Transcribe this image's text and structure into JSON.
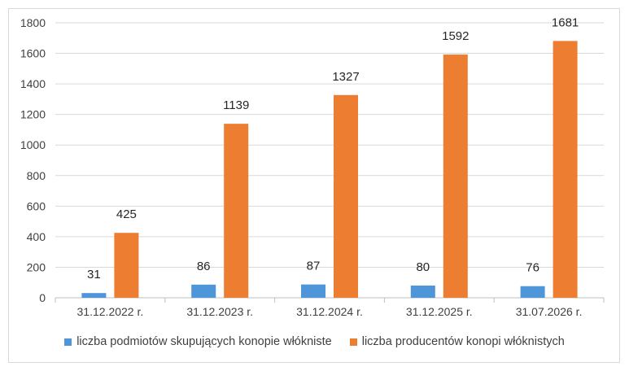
{
  "chart_data": {
    "type": "bar",
    "categories": [
      "31.12.2022 r.",
      "31.12.2023 r.",
      "31.12.2024 r.",
      "31.12.2025 r.",
      "31.07.2026 r."
    ],
    "series": [
      {
        "name": "liczba podmiotów skupujących konopie włókniste",
        "values": [
          31,
          86,
          87,
          80,
          76
        ],
        "color": "#4e95d9"
      },
      {
        "name": "liczba producentów konopi włóknistych",
        "values": [
          425,
          1139,
          1327,
          1592,
          1681
        ],
        "color": "#ed7d31"
      }
    ],
    "ylim": [
      0,
      1800
    ],
    "yticks": [
      0,
      200,
      400,
      600,
      800,
      1000,
      1200,
      1400,
      1600,
      1800
    ],
    "grid": true,
    "data_labels": true,
    "legend_position": "bottom"
  }
}
